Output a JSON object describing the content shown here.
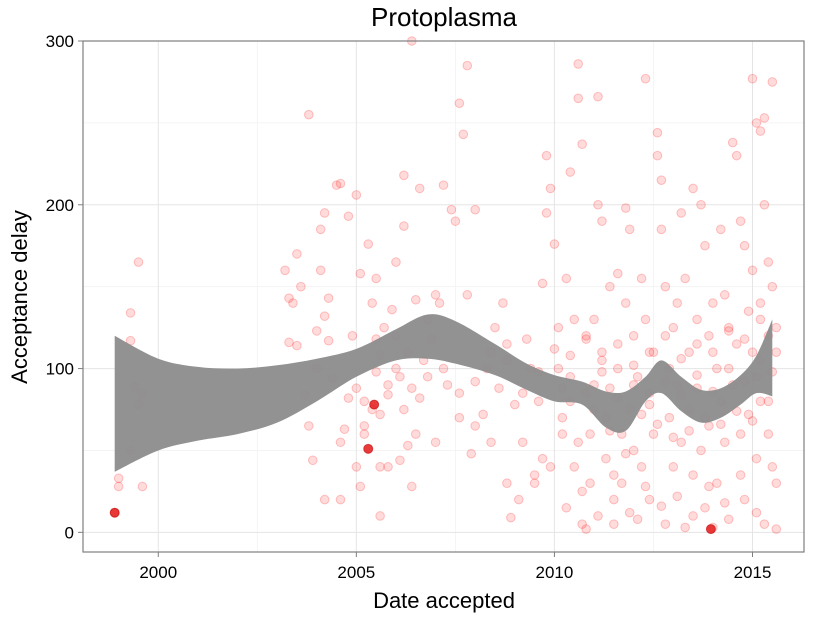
{
  "chart_data": {
    "type": "scatter",
    "title": "Protoplasma",
    "xlabel": "Date accepted",
    "ylabel": "Acceptance delay",
    "xlim": [
      1998.1,
      2016.3
    ],
    "ylim": [
      -12,
      300
    ],
    "x_ticks": [
      2000,
      2005,
      2010,
      2015
    ],
    "y_ticks": [
      0,
      100,
      200,
      300
    ],
    "grid": true,
    "legend": "none",
    "point_color": "#ff0000",
    "band_color": "#8c8c8c",
    "highlighted_points": [
      {
        "x": 2005.45,
        "y": 78
      },
      {
        "x": 2005.3,
        "y": 51
      },
      {
        "x": 2013.95,
        "y": 2
      },
      {
        "x": 1998.9,
        "y": 12
      }
    ],
    "smooth_band": [
      {
        "x": 1998.9,
        "lo": 37,
        "hi": 120
      },
      {
        "x": 2000.0,
        "lo": 50,
        "hi": 106
      },
      {
        "x": 2001.0,
        "lo": 56,
        "hi": 101
      },
      {
        "x": 2002.0,
        "lo": 60,
        "hi": 100
      },
      {
        "x": 2003.0,
        "lo": 67,
        "hi": 102
      },
      {
        "x": 2004.0,
        "lo": 80,
        "hi": 106
      },
      {
        "x": 2005.0,
        "lo": 95,
        "hi": 112
      },
      {
        "x": 2006.0,
        "lo": 105,
        "hi": 124
      },
      {
        "x": 2006.8,
        "lo": 106,
        "hi": 133
      },
      {
        "x": 2007.5,
        "lo": 103,
        "hi": 129
      },
      {
        "x": 2008.5,
        "lo": 96,
        "hi": 115
      },
      {
        "x": 2009.3,
        "lo": 87,
        "hi": 103
      },
      {
        "x": 2010.0,
        "lo": 80,
        "hi": 96
      },
      {
        "x": 2010.7,
        "lo": 78,
        "hi": 92
      },
      {
        "x": 2011.3,
        "lo": 64,
        "hi": 86
      },
      {
        "x": 2011.8,
        "lo": 62,
        "hi": 86
      },
      {
        "x": 2012.3,
        "lo": 80,
        "hi": 95
      },
      {
        "x": 2012.7,
        "lo": 85,
        "hi": 105
      },
      {
        "x": 2013.2,
        "lo": 74,
        "hi": 95
      },
      {
        "x": 2013.7,
        "lo": 67,
        "hi": 87
      },
      {
        "x": 2014.2,
        "lo": 70,
        "hi": 88
      },
      {
        "x": 2014.7,
        "lo": 78,
        "hi": 96
      },
      {
        "x": 2015.1,
        "lo": 85,
        "hi": 108
      },
      {
        "x": 2015.5,
        "lo": 83,
        "hi": 130
      }
    ],
    "points": [
      [
        1998.9,
        12
      ],
      [
        1999.0,
        33
      ],
      [
        1999.0,
        28
      ],
      [
        1999.3,
        50
      ],
      [
        1999.3,
        117
      ],
      [
        1999.3,
        134
      ],
      [
        1999.4,
        89
      ],
      [
        1999.5,
        165
      ],
      [
        1999.5,
        78
      ],
      [
        1999.6,
        28
      ],
      [
        1999.6,
        85
      ],
      [
        2003.2,
        160
      ],
      [
        2003.3,
        143
      ],
      [
        2003.3,
        116
      ],
      [
        2003.4,
        140
      ],
      [
        2003.5,
        114
      ],
      [
        2003.6,
        150
      ],
      [
        2003.5,
        170
      ],
      [
        2003.7,
        84
      ],
      [
        2003.8,
        65
      ],
      [
        2003.8,
        255
      ],
      [
        2003.9,
        44
      ],
      [
        2004.0,
        123
      ],
      [
        2004.0,
        100
      ],
      [
        2004.1,
        185
      ],
      [
        2004.1,
        160
      ],
      [
        2004.2,
        195
      ],
      [
        2004.2,
        132
      ],
      [
        2004.3,
        143
      ],
      [
        2004.3,
        117
      ],
      [
        2004.4,
        94
      ],
      [
        2004.5,
        212
      ],
      [
        2004.6,
        213
      ],
      [
        2004.6,
        55
      ],
      [
        2004.7,
        63
      ],
      [
        2004.8,
        193
      ],
      [
        2004.8,
        82
      ],
      [
        2004.9,
        120
      ],
      [
        2005.0,
        206
      ],
      [
        2005.0,
        88
      ],
      [
        2004.2,
        20
      ],
      [
        2004.6,
        20
      ],
      [
        2005.0,
        40
      ],
      [
        2005.1,
        28
      ],
      [
        2005.1,
        158
      ],
      [
        2005.2,
        80
      ],
      [
        2005.2,
        65
      ],
      [
        2005.3,
        176
      ],
      [
        2005.4,
        140
      ],
      [
        2005.5,
        98
      ],
      [
        2005.5,
        118
      ],
      [
        2005.5,
        155
      ],
      [
        2005.6,
        108
      ],
      [
        2005.6,
        40
      ],
      [
        2005.6,
        10
      ],
      [
        2005.7,
        125
      ],
      [
        2005.8,
        84
      ],
      [
        2005.8,
        40
      ],
      [
        2005.9,
        136
      ],
      [
        2006.0,
        165
      ],
      [
        2006.0,
        120
      ],
      [
        2006.1,
        44
      ],
      [
        2006.1,
        95
      ],
      [
        2006.2,
        75
      ],
      [
        2006.2,
        218
      ],
      [
        2006.2,
        187
      ],
      [
        2006.3,
        110
      ],
      [
        2006.3,
        53
      ],
      [
        2006.4,
        300
      ],
      [
        2006.4,
        28
      ],
      [
        2006.5,
        142
      ],
      [
        2006.5,
        60
      ],
      [
        2006.6,
        210
      ],
      [
        2006.6,
        82
      ],
      [
        2006.7,
        105
      ],
      [
        2006.8,
        130
      ],
      [
        2006.9,
        118
      ],
      [
        2007.0,
        145
      ],
      [
        2007.0,
        55
      ],
      [
        2007.1,
        140
      ],
      [
        2007.2,
        212
      ],
      [
        2007.3,
        90
      ],
      [
        2007.4,
        197
      ],
      [
        2007.5,
        190
      ],
      [
        2007.6,
        70
      ],
      [
        2007.6,
        262
      ],
      [
        2007.7,
        243
      ],
      [
        2007.8,
        285
      ],
      [
        2007.8,
        145
      ],
      [
        2007.9,
        48
      ],
      [
        2008.0,
        197
      ],
      [
        2008.0,
        65
      ],
      [
        2008.2,
        72
      ],
      [
        2008.3,
        100
      ],
      [
        2008.4,
        55
      ],
      [
        2008.5,
        125
      ],
      [
        2008.6,
        88
      ],
      [
        2008.7,
        140
      ],
      [
        2008.8,
        30
      ],
      [
        2008.8,
        115
      ],
      [
        2008.9,
        9
      ],
      [
        2009.0,
        78
      ],
      [
        2009.1,
        20
      ],
      [
        2009.2,
        55
      ],
      [
        2009.3,
        118
      ],
      [
        2009.4,
        100
      ],
      [
        2009.5,
        30
      ],
      [
        2009.5,
        35
      ],
      [
        2009.6,
        80
      ],
      [
        2009.7,
        45
      ],
      [
        2009.7,
        152
      ],
      [
        2009.8,
        230
      ],
      [
        2009.8,
        195
      ],
      [
        2009.9,
        210
      ],
      [
        2010.0,
        176
      ],
      [
        2010.1,
        100
      ],
      [
        2010.1,
        125
      ],
      [
        2010.2,
        60
      ],
      [
        2010.2,
        88
      ],
      [
        2010.3,
        155
      ],
      [
        2010.4,
        220
      ],
      [
        2010.4,
        80
      ],
      [
        2010.5,
        130
      ],
      [
        2010.5,
        40
      ],
      [
        2010.6,
        286
      ],
      [
        2010.6,
        265
      ],
      [
        2010.7,
        237
      ],
      [
        2010.7,
        5
      ],
      [
        2010.8,
        2
      ],
      [
        2010.8,
        120
      ],
      [
        2010.9,
        30
      ],
      [
        2010.9,
        60
      ],
      [
        2011.0,
        90
      ],
      [
        2011.0,
        130
      ],
      [
        2011.1,
        266
      ],
      [
        2011.1,
        200
      ],
      [
        2011.2,
        190
      ],
      [
        2011.2,
        110
      ],
      [
        2011.3,
        70
      ],
      [
        2011.3,
        45
      ],
      [
        2011.4,
        150
      ],
      [
        2011.4,
        88
      ],
      [
        2011.5,
        20
      ],
      [
        2011.5,
        5
      ],
      [
        2011.6,
        158
      ],
      [
        2011.6,
        100
      ],
      [
        2011.7,
        60
      ],
      [
        2011.7,
        30
      ],
      [
        2011.8,
        198
      ],
      [
        2011.8,
        140
      ],
      [
        2011.9,
        185
      ],
      [
        2011.9,
        75
      ],
      [
        2012.0,
        120
      ],
      [
        2012.0,
        50
      ],
      [
        2012.1,
        8
      ],
      [
        2012.1,
        95
      ],
      [
        2012.2,
        155
      ],
      [
        2012.2,
        40
      ],
      [
        2012.3,
        277
      ],
      [
        2012.3,
        130
      ],
      [
        2012.4,
        85
      ],
      [
        2012.4,
        20
      ],
      [
        2012.5,
        110
      ],
      [
        2012.5,
        60
      ],
      [
        2012.6,
        244
      ],
      [
        2012.6,
        230
      ],
      [
        2012.7,
        215
      ],
      [
        2012.7,
        185
      ],
      [
        2012.8,
        150
      ],
      [
        2012.8,
        5
      ],
      [
        2012.9,
        100
      ],
      [
        2012.9,
        70
      ],
      [
        2013.0,
        125
      ],
      [
        2013.0,
        40
      ],
      [
        2013.1,
        140
      ],
      [
        2013.1,
        90
      ],
      [
        2013.2,
        195
      ],
      [
        2013.2,
        55
      ],
      [
        2013.3,
        155
      ],
      [
        2013.3,
        3
      ],
      [
        2013.4,
        110
      ],
      [
        2013.4,
        75
      ],
      [
        2013.5,
        210
      ],
      [
        2013.5,
        35
      ],
      [
        2013.6,
        130
      ],
      [
        2013.6,
        88
      ],
      [
        2013.7,
        200
      ],
      [
        2013.7,
        50
      ],
      [
        2013.8,
        175
      ],
      [
        2013.8,
        15
      ],
      [
        2013.9,
        120
      ],
      [
        2013.9,
        65
      ],
      [
        2014.0,
        3
      ],
      [
        2014.0,
        140
      ],
      [
        2014.1,
        100
      ],
      [
        2014.1,
        30
      ],
      [
        2014.2,
        185
      ],
      [
        2014.2,
        80
      ],
      [
        2014.3,
        145
      ],
      [
        2014.3,
        55
      ],
      [
        2014.4,
        123
      ],
      [
        2014.4,
        8
      ],
      [
        2014.5,
        238
      ],
      [
        2014.5,
        90
      ],
      [
        2014.6,
        230
      ],
      [
        2014.6,
        115
      ],
      [
        2014.7,
        190
      ],
      [
        2014.7,
        60
      ],
      [
        2014.8,
        175
      ],
      [
        2014.8,
        20
      ],
      [
        2014.9,
        135
      ],
      [
        2014.9,
        72
      ],
      [
        2015.0,
        277
      ],
      [
        2015.0,
        160
      ],
      [
        2015.0,
        110
      ],
      [
        2015.1,
        250
      ],
      [
        2015.1,
        95
      ],
      [
        2015.1,
        45
      ],
      [
        2015.2,
        245
      ],
      [
        2015.2,
        140
      ],
      [
        2015.2,
        80
      ],
      [
        2015.3,
        253
      ],
      [
        2015.3,
        200
      ],
      [
        2015.3,
        5
      ],
      [
        2015.4,
        165
      ],
      [
        2015.4,
        120
      ],
      [
        2015.4,
        60
      ],
      [
        2015.5,
        275
      ],
      [
        2015.5,
        150
      ],
      [
        2015.5,
        98
      ],
      [
        2015.6,
        110
      ],
      [
        2015.6,
        30
      ],
      [
        2015.6,
        2
      ],
      [
        2010.2,
        70
      ],
      [
        2010.6,
        55
      ],
      [
        2011.0,
        75
      ],
      [
        2011.4,
        62
      ],
      [
        2011.8,
        48
      ],
      [
        2012.2,
        72
      ],
      [
        2012.6,
        66
      ],
      [
        2013.0,
        58
      ],
      [
        2013.4,
        62
      ],
      [
        2013.8,
        70
      ],
      [
        2014.2,
        66
      ],
      [
        2014.6,
        74
      ],
      [
        2015.0,
        68
      ],
      [
        2015.4,
        80
      ],
      [
        2010.4,
        95
      ],
      [
        2010.8,
        85
      ],
      [
        2011.2,
        98
      ],
      [
        2011.6,
        82
      ],
      [
        2012.0,
        90
      ],
      [
        2012.4,
        78
      ],
      [
        2012.8,
        92
      ],
      [
        2013.2,
        84
      ],
      [
        2013.6,
        96
      ],
      [
        2014.0,
        86
      ],
      [
        2014.4,
        100
      ],
      [
        2014.8,
        92
      ],
      [
        2015.2,
        105
      ],
      [
        2009.9,
        40
      ],
      [
        2010.3,
        15
      ],
      [
        2010.7,
        25
      ],
      [
        2011.1,
        10
      ],
      [
        2011.5,
        35
      ],
      [
        2011.9,
        12
      ],
      [
        2012.3,
        28
      ],
      [
        2012.7,
        16
      ],
      [
        2013.1,
        22
      ],
      [
        2013.5,
        10
      ],
      [
        2013.9,
        28
      ],
      [
        2014.3,
        18
      ],
      [
        2014.7,
        35
      ],
      [
        2015.1,
        12
      ],
      [
        2015.5,
        40
      ],
      [
        2010.0,
        112
      ],
      [
        2010.4,
        108
      ],
      [
        2010.8,
        118
      ],
      [
        2011.2,
        105
      ],
      [
        2011.6,
        115
      ],
      [
        2012.0,
        102
      ],
      [
        2012.4,
        110
      ],
      [
        2012.8,
        120
      ],
      [
        2013.2,
        106
      ],
      [
        2013.6,
        115
      ],
      [
        2014.0,
        110
      ],
      [
        2014.4,
        125
      ],
      [
        2014.8,
        118
      ],
      [
        2015.2,
        130
      ],
      [
        2015.6,
        125
      ],
      [
        2005.4,
        75
      ],
      [
        2005.6,
        72
      ],
      [
        2005.2,
        60
      ],
      [
        2005.8,
        90
      ],
      [
        2006.0,
        100
      ],
      [
        2006.4,
        88
      ],
      [
        2006.8,
        95
      ],
      [
        2007.2,
        100
      ],
      [
        2007.6,
        85
      ],
      [
        2008.0,
        92
      ],
      [
        2008.4,
        110
      ],
      [
        2008.8,
        105
      ],
      [
        2009.2,
        85
      ],
      [
        2009.6,
        98
      ]
    ]
  }
}
